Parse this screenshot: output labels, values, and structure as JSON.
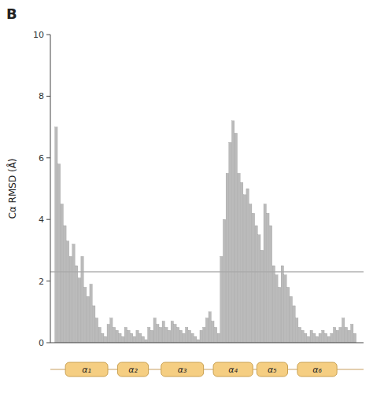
{
  "chart_data": {
    "type": "bar",
    "title": "B",
    "y_label": "Cα RMSD (Å)",
    "categories": [
      null,
      null,
      null,
      null,
      null,
      null,
      null,
      null,
      null,
      null,
      null,
      null,
      null,
      null,
      null,
      null,
      null,
      null,
      null,
      null,
      null,
      null,
      null,
      null,
      null,
      null,
      null,
      null,
      null,
      null,
      null,
      null,
      null,
      null,
      null,
      null,
      null,
      null,
      null,
      null,
      null,
      null,
      null,
      null,
      null,
      null,
      null,
      null,
      null,
      null,
      null,
      null,
      null,
      null,
      null,
      null,
      null,
      null,
      null,
      null,
      null,
      null,
      null,
      null,
      null,
      null,
      null,
      null,
      null,
      null,
      null,
      null,
      null,
      null,
      null,
      null,
      null,
      null,
      null,
      null,
      null,
      null,
      null,
      null,
      null,
      null,
      null,
      null,
      null,
      null,
      null,
      null,
      null,
      null,
      null,
      null,
      null,
      null,
      null,
      null,
      null,
      null,
      null,
      null
    ],
    "values": [
      7.0,
      5.8,
      4.5,
      3.8,
      3.3,
      2.8,
      3.2,
      2.5,
      2.1,
      2.8,
      1.8,
      1.5,
      1.9,
      1.2,
      0.8,
      0.5,
      0.3,
      0.2,
      0.6,
      0.8,
      0.5,
      0.4,
      0.3,
      0.2,
      0.5,
      0.4,
      0.3,
      0.2,
      0.4,
      0.3,
      0.2,
      0.1,
      0.5,
      0.4,
      0.8,
      0.6,
      0.5,
      0.7,
      0.5,
      0.4,
      0.7,
      0.6,
      0.5,
      0.4,
      0.3,
      0.5,
      0.4,
      0.3,
      0.2,
      0.1,
      0.4,
      0.5,
      0.8,
      1.0,
      0.7,
      0.5,
      0.3,
      2.8,
      4.0,
      5.5,
      6.5,
      7.2,
      6.8,
      5.5,
      5.2,
      4.8,
      5.0,
      4.5,
      4.2,
      3.8,
      3.5,
      3.0,
      4.5,
      4.2,
      3.8,
      2.5,
      2.2,
      1.8,
      2.5,
      2.2,
      1.8,
      1.5,
      1.2,
      0.8,
      0.5,
      0.4,
      0.3,
      0.2,
      0.4,
      0.3,
      0.2,
      0.3,
      0.4,
      0.3,
      0.2,
      0.3,
      0.5,
      0.4,
      0.5,
      0.8,
      0.5,
      0.4,
      0.6,
      0.3
    ],
    "color": "#bbbbbb",
    "ylim": [
      0,
      10
    ],
    "yticks": [
      0,
      2,
      4,
      6,
      8,
      10
    ],
    "grid": false,
    "tick_labels": "y",
    "hline": {
      "value": 2.3,
      "color": "#aaaaaa"
    },
    "annotations": [
      {
        "text": "α₁",
        "x": [
          4,
          17
        ],
        "color": "#f5ce82"
      },
      {
        "text": "α₂",
        "x": [
          22,
          31
        ],
        "color": "#f5ce82"
      },
      {
        "text": "α₃",
        "x": [
          37,
          50
        ],
        "color": "#f5ce82"
      },
      {
        "text": "α₄",
        "x": [
          55,
          67
        ],
        "color": "#f5ce82"
      },
      {
        "text": "α₅",
        "x": [
          70,
          79
        ],
        "color": "#f5ce82"
      },
      {
        "text": "α₆",
        "x": [
          84,
          96
        ],
        "color": "#f5ce82"
      }
    ]
  }
}
